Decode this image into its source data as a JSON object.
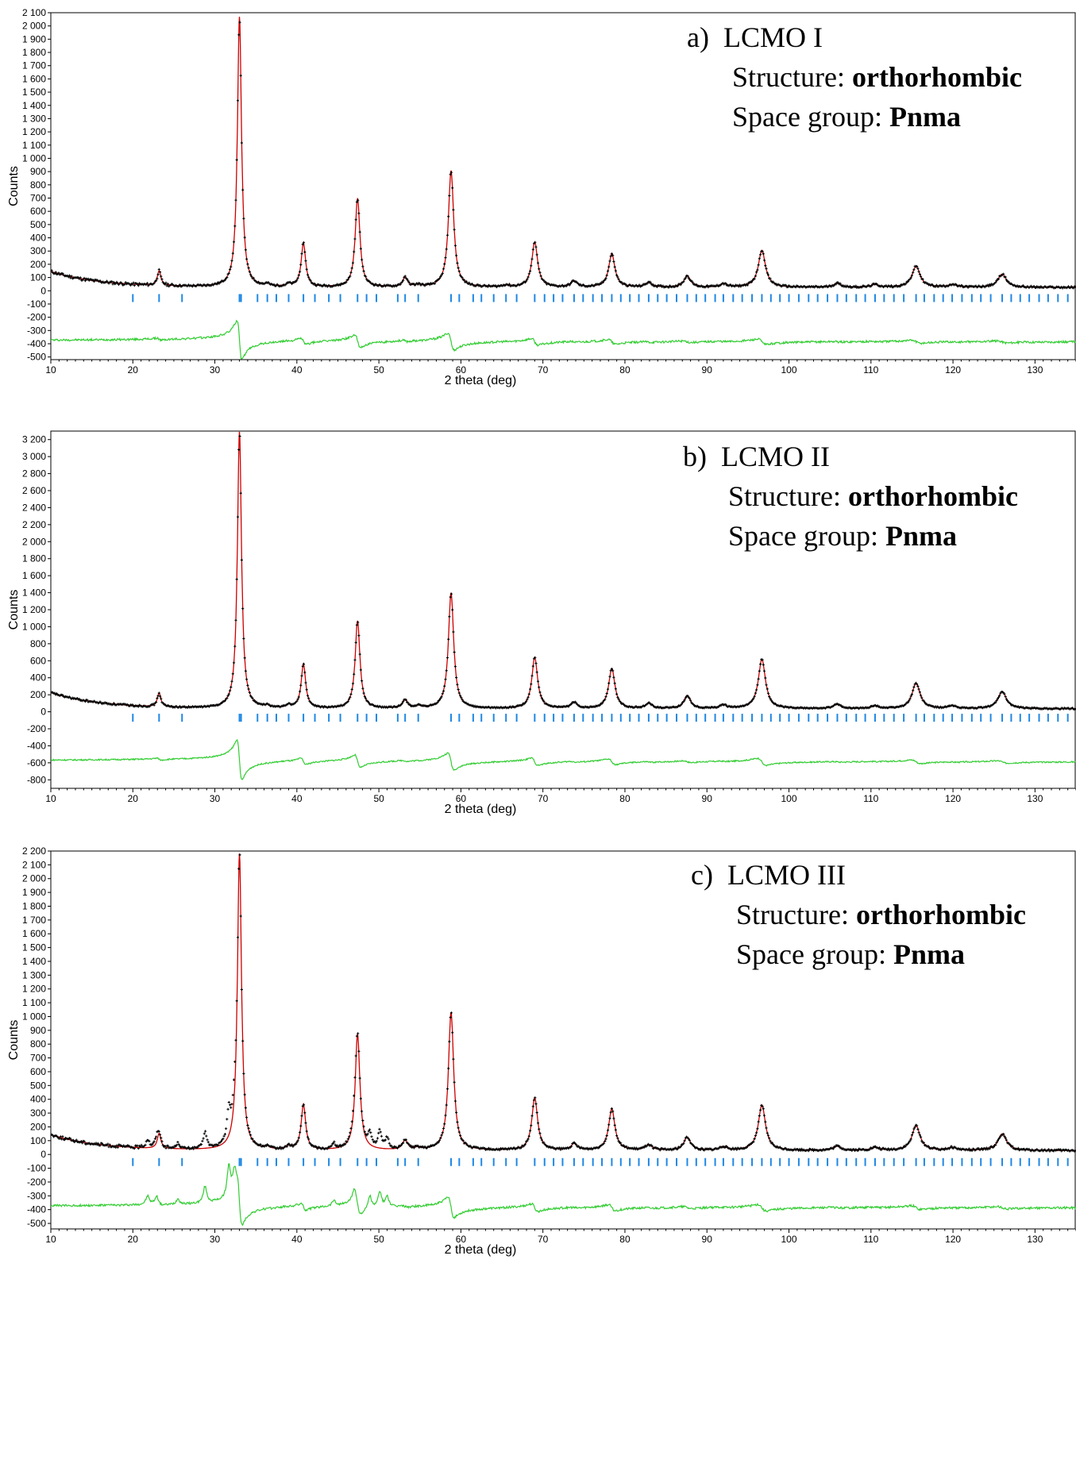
{
  "chart_data": [
    {
      "type": "line",
      "title": "",
      "xlabel": "2 theta (deg)",
      "ylabel": "Counts",
      "xlim": [
        10,
        135
      ],
      "ylim": [
        -520,
        2100
      ],
      "x_ticks": [
        10,
        20,
        30,
        40,
        50,
        60,
        70,
        80,
        90,
        100,
        110,
        120,
        130
      ],
      "y_ticks": [
        -500,
        -400,
        -300,
        -200,
        -100,
        0,
        100,
        200,
        300,
        400,
        500,
        600,
        700,
        800,
        900,
        1000,
        1100,
        1200,
        1300,
        1400,
        1500,
        1600,
        1700,
        1800,
        1900,
        2000,
        2100
      ],
      "y_tick_labels": [
        "-500",
        "-400",
        "-300",
        "-200",
        "-100",
        "0",
        "100",
        "200",
        "300",
        "400",
        "500",
        "600",
        "700",
        "800",
        "900",
        "1 000",
        "1 100",
        "1 200",
        "1 300",
        "1 400",
        "1 500",
        "1 600",
        "1 700",
        "1 800",
        "1 900",
        "2 000",
        "2 100"
      ],
      "annotation": {
        "label": "a)",
        "sample": "LCMO I",
        "structure_prefix": "Structure: ",
        "structure": "orthorhombic",
        "group_prefix": "Space group: ",
        "group": "Pnma"
      },
      "diff_offset": -380,
      "series": [
        {
          "kind": "observed",
          "color": "#000000"
        },
        {
          "kind": "calculated",
          "color": "#cc0000"
        },
        {
          "kind": "bragg",
          "color": "#1e88e5"
        },
        {
          "kind": "difference",
          "color": "#33cc33"
        }
      ],
      "peaks": [
        [
          23.2,
          110
        ],
        [
          33.0,
          2040
        ],
        [
          36.4,
          15
        ],
        [
          39.0,
          18
        ],
        [
          40.8,
          330
        ],
        [
          47.4,
          670
        ],
        [
          53.2,
          70
        ],
        [
          54.8,
          15
        ],
        [
          58.8,
          880
        ],
        [
          65.5,
          15
        ],
        [
          69.0,
          340
        ],
        [
          73.8,
          45
        ],
        [
          78.4,
          250
        ],
        [
          82.9,
          35
        ],
        [
          87.6,
          85
        ],
        [
          92.0,
          25
        ],
        [
          96.7,
          280
        ],
        [
          105.9,
          30
        ],
        [
          110.5,
          20
        ],
        [
          115.5,
          160
        ],
        [
          119.9,
          20
        ],
        [
          126.0,
          100
        ]
      ],
      "bragg_positions": [
        20.0,
        23.2,
        26.0,
        33.0,
        33.2,
        35.2,
        36.4,
        37.5,
        39.0,
        40.8,
        42.2,
        43.9,
        45.3,
        47.4,
        48.5,
        49.7,
        52.3,
        53.2,
        54.8,
        58.8,
        59.8,
        61.5,
        62.5,
        64.0,
        65.5,
        66.8,
        69.0,
        70.2,
        71.3,
        72.4,
        73.8,
        74.9,
        76.1,
        77.2,
        78.4,
        79.5,
        80.6,
        81.7,
        82.9,
        84.0,
        85.1,
        86.3,
        87.6,
        88.7,
        89.8,
        91.0,
        92.0,
        93.2,
        94.3,
        95.5,
        96.7,
        97.8,
        98.9,
        100.0,
        101.2,
        102.4,
        103.5,
        104.7,
        105.9,
        107.0,
        108.2,
        109.3,
        110.5,
        111.6,
        112.8,
        114.0,
        115.5,
        116.5,
        117.7,
        118.8,
        119.9,
        121.1,
        122.3,
        123.4,
        124.6,
        126.0,
        127.1,
        128.2,
        129.3,
        130.5,
        131.6,
        132.8,
        134.0
      ],
      "bragg_y": -55,
      "background": {
        "b0": 25,
        "b1": 120,
        "decay": 6
      }
    },
    {
      "type": "line",
      "title": "",
      "xlabel": "2 theta (deg)",
      "ylabel": "Counts",
      "xlim": [
        10,
        135
      ],
      "ylim": [
        -900,
        3300
      ],
      "x_ticks": [
        10,
        20,
        30,
        40,
        50,
        60,
        70,
        80,
        90,
        100,
        110,
        120,
        130
      ],
      "y_ticks": [
        -800,
        -600,
        -400,
        -200,
        0,
        200,
        400,
        600,
        800,
        1000,
        1200,
        1400,
        1600,
        1800,
        2000,
        2200,
        2400,
        2600,
        2800,
        3000,
        3200
      ],
      "y_tick_labels": [
        "-800",
        "-600",
        "-400",
        "-200",
        "0",
        "200",
        "400",
        "600",
        "800",
        "1 000",
        "1 200",
        "1 400",
        "1 600",
        "1 800",
        "2 000",
        "2 200",
        "2 400",
        "2 600",
        "2 800",
        "3 000",
        "3 200"
      ],
      "annotation": {
        "label": "b)",
        "sample": "LCMO II",
        "structure_prefix": "Structure: ",
        "structure": "orthorhombic",
        "group_prefix": "Space group: ",
        "group": "Pnma"
      },
      "diff_offset": -580,
      "series": [
        {
          "kind": "observed",
          "color": "#000000"
        },
        {
          "kind": "calculated",
          "color": "#cc0000"
        },
        {
          "kind": "bragg",
          "color": "#1e88e5"
        },
        {
          "kind": "difference",
          "color": "#33cc33"
        }
      ],
      "peaks": [
        [
          23.2,
          160
        ],
        [
          33.0,
          3250
        ],
        [
          36.4,
          25
        ],
        [
          39.0,
          35
        ],
        [
          40.8,
          520
        ],
        [
          47.4,
          1030
        ],
        [
          53.2,
          100
        ],
        [
          54.8,
          25
        ],
        [
          58.8,
          1360
        ],
        [
          69.0,
          600
        ],
        [
          73.8,
          70
        ],
        [
          78.4,
          470
        ],
        [
          82.9,
          60
        ],
        [
          87.6,
          150
        ],
        [
          92.0,
          40
        ],
        [
          96.7,
          580
        ],
        [
          105.9,
          50
        ],
        [
          110.5,
          30
        ],
        [
          115.5,
          300
        ],
        [
          119.9,
          30
        ],
        [
          126.0,
          200
        ]
      ],
      "bragg_positions": [
        20.0,
        23.2,
        26.0,
        33.0,
        33.2,
        35.2,
        36.4,
        37.5,
        39.0,
        40.8,
        42.2,
        43.9,
        45.3,
        47.4,
        48.5,
        49.7,
        52.3,
        53.2,
        54.8,
        58.8,
        59.8,
        61.5,
        62.5,
        64.0,
        65.5,
        66.8,
        69.0,
        70.2,
        71.3,
        72.4,
        73.8,
        74.9,
        76.1,
        77.2,
        78.4,
        79.5,
        80.6,
        81.7,
        82.9,
        84.0,
        85.1,
        86.3,
        87.6,
        88.7,
        89.8,
        91.0,
        92.0,
        93.2,
        94.3,
        95.5,
        96.7,
        97.8,
        98.9,
        100.0,
        101.2,
        102.4,
        103.5,
        104.7,
        105.9,
        107.0,
        108.2,
        109.3,
        110.5,
        111.6,
        112.8,
        114.0,
        115.5,
        116.5,
        117.7,
        118.8,
        119.9,
        121.1,
        122.3,
        123.4,
        124.6,
        126.0,
        127.1,
        128.2,
        129.3,
        130.5,
        131.6,
        132.8,
        134.0
      ],
      "bragg_y": -70,
      "background": {
        "b0": 35,
        "b1": 190,
        "decay": 6
      }
    },
    {
      "type": "line",
      "title": "",
      "xlabel": "2 theta (deg)",
      "ylabel": "Counts",
      "xlim": [
        10,
        135
      ],
      "ylim": [
        -540,
        2200
      ],
      "x_ticks": [
        10,
        20,
        30,
        40,
        50,
        60,
        70,
        80,
        90,
        100,
        110,
        120,
        130
      ],
      "y_ticks": [
        -500,
        -400,
        -300,
        -200,
        -100,
        0,
        100,
        200,
        300,
        400,
        500,
        600,
        700,
        800,
        900,
        1000,
        1100,
        1200,
        1300,
        1400,
        1500,
        1600,
        1700,
        1800,
        1900,
        2000,
        2100,
        2200
      ],
      "y_tick_labels": [
        "-500",
        "-400",
        "-300",
        "-200",
        "-100",
        "0",
        "100",
        "200",
        "300",
        "400",
        "500",
        "600",
        "700",
        "800",
        "900",
        "1 000",
        "1 100",
        "1 200",
        "1 300",
        "1 400",
        "1 500",
        "1 600",
        "1 700",
        "1 800",
        "1 900",
        "2 000",
        "2 100",
        "2 200"
      ],
      "annotation": {
        "label": "c)",
        "sample": "LCMO III",
        "structure_prefix": "Structure: ",
        "structure": "orthorhombic",
        "group_prefix": "Space group: ",
        "group": "Pnma"
      },
      "diff_offset": -380,
      "series": [
        {
          "kind": "observed",
          "color": "#000000"
        },
        {
          "kind": "calculated",
          "color": "#cc0000"
        },
        {
          "kind": "bragg",
          "color": "#1e88e5"
        },
        {
          "kind": "difference",
          "color": "#33cc33"
        }
      ],
      "peaks": [
        [
          23.2,
          110
        ],
        [
          33.0,
          2150
        ],
        [
          36.4,
          15
        ],
        [
          39.0,
          25
        ],
        [
          40.8,
          330
        ],
        [
          47.4,
          840
        ],
        [
          53.2,
          70
        ],
        [
          54.8,
          15
        ],
        [
          58.8,
          1000
        ],
        [
          69.0,
          380
        ],
        [
          73.8,
          45
        ],
        [
          78.4,
          300
        ],
        [
          82.9,
          40
        ],
        [
          87.6,
          95
        ],
        [
          92.0,
          25
        ],
        [
          96.7,
          330
        ],
        [
          105.9,
          30
        ],
        [
          110.5,
          20
        ],
        [
          115.5,
          180
        ],
        [
          119.9,
          20
        ],
        [
          126.0,
          120
        ]
      ],
      "impurity_peaks": [
        [
          21.8,
          60
        ],
        [
          22.9,
          50
        ],
        [
          25.5,
          40
        ],
        [
          28.8,
          120
        ],
        [
          31.7,
          220
        ],
        [
          32.4,
          140
        ],
        [
          44.5,
          40
        ],
        [
          47.0,
          70
        ],
        [
          48.9,
          100
        ],
        [
          50.1,
          120
        ],
        [
          51.0,
          80
        ]
      ],
      "bragg_positions": [
        20.0,
        23.2,
        26.0,
        33.0,
        33.2,
        35.2,
        36.4,
        37.5,
        39.0,
        40.8,
        42.2,
        43.9,
        45.3,
        47.4,
        48.5,
        49.7,
        52.3,
        53.2,
        54.8,
        58.8,
        59.8,
        61.5,
        62.5,
        64.0,
        65.5,
        66.8,
        69.0,
        70.2,
        71.3,
        72.4,
        73.8,
        74.9,
        76.1,
        77.2,
        78.4,
        79.5,
        80.6,
        81.7,
        82.9,
        84.0,
        85.1,
        86.3,
        87.6,
        88.7,
        89.8,
        91.0,
        92.0,
        93.2,
        94.3,
        95.5,
        96.7,
        97.8,
        98.9,
        100.0,
        101.2,
        102.4,
        103.5,
        104.7,
        105.9,
        107.0,
        108.2,
        109.3,
        110.5,
        111.6,
        112.8,
        114.0,
        115.5,
        116.5,
        117.7,
        118.8,
        119.9,
        121.1,
        122.3,
        123.4,
        124.6,
        126.0,
        127.1,
        128.2,
        129.3,
        130.5,
        131.6,
        132.8,
        134.0
      ],
      "bragg_y": -55,
      "background": {
        "b0": 28,
        "b1": 115,
        "decay": 6
      }
    }
  ]
}
